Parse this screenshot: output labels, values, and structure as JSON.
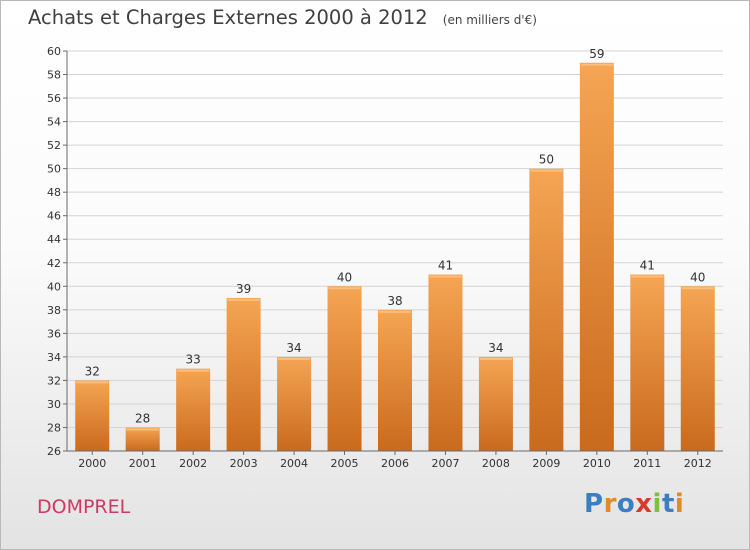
{
  "header": {
    "title": "Achats et Charges Externes 2000 à 2012",
    "units": "(en milliers d'€)"
  },
  "place": "DOMPREL",
  "logo": {
    "text": "Proxiti",
    "colors": [
      "#3a7fc1",
      "#e08a2a",
      "#3a7fc1",
      "#d93a2b",
      "#7fbf3f",
      "#3a7fc1",
      "#e08a2a"
    ]
  },
  "colors": {
    "bar_top": "#f5a553",
    "bar_bottom": "#c96a1d",
    "grid": "#d4d4d4",
    "axis": "#6a6a6a"
  },
  "chart_data": {
    "type": "bar",
    "title": "Achats et Charges Externes 2000 à 2012",
    "ylabel": "(en milliers d'€)",
    "xlabel": "",
    "categories": [
      "2000",
      "2001",
      "2002",
      "2003",
      "2004",
      "2005",
      "2006",
      "2007",
      "2008",
      "2009",
      "2010",
      "2011",
      "2012"
    ],
    "values": [
      32,
      28,
      33,
      39,
      34,
      40,
      38,
      41,
      34,
      50,
      59,
      41,
      40
    ],
    "ylim": [
      26,
      60
    ],
    "yticks": [
      26,
      28,
      30,
      32,
      34,
      36,
      38,
      40,
      42,
      44,
      46,
      48,
      50,
      52,
      54,
      56,
      58,
      60
    ],
    "grid": true
  }
}
